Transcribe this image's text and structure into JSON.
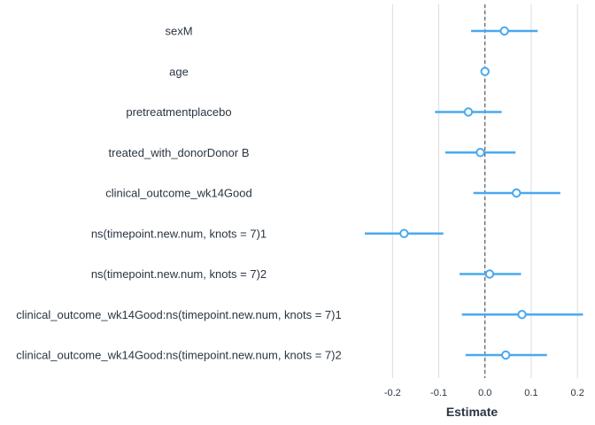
{
  "chart_data": {
    "type": "scatter",
    "subtype": "coefficient-plot",
    "xlabel": "Estimate",
    "ylabel": "",
    "xlim": [
      -0.26,
      0.215
    ],
    "x_ticks": [
      -0.2,
      -0.1,
      0.0,
      0.1,
      0.2
    ],
    "x_tick_labels": [
      "-0.2",
      "-0.1",
      "0.0",
      "0.1",
      "0.2"
    ],
    "grid": "vertical",
    "reference_line": 0,
    "point_color": "#4aa8f0",
    "terms": [
      {
        "name": "sexM",
        "estimate": 0.042,
        "low": -0.03,
        "high": 0.114
      },
      {
        "name": "age",
        "estimate": 0.0,
        "low": -0.002,
        "high": 0.002
      },
      {
        "name": "pretreatmentplacebo",
        "estimate": -0.036,
        "low": -0.108,
        "high": 0.036
      },
      {
        "name": "treated_with_donorDonor B",
        "estimate": -0.01,
        "low": -0.086,
        "high": 0.066
      },
      {
        "name": "clinical_outcome_wk14Good",
        "estimate": 0.068,
        "low": -0.025,
        "high": 0.163
      },
      {
        "name": "ns(timepoint.new.num, knots = 7)1",
        "estimate": -0.175,
        "low": -0.26,
        "high": -0.09
      },
      {
        "name": "ns(timepoint.new.num, knots = 7)2",
        "estimate": 0.01,
        "low": -0.055,
        "high": 0.078
      },
      {
        "name": "clinical_outcome_wk14Good:ns(timepoint.new.num, knots = 7)1",
        "estimate": 0.08,
        "low": -0.05,
        "high": 0.212
      },
      {
        "name": "clinical_outcome_wk14Good:ns(timepoint.new.num, knots = 7)2",
        "estimate": 0.045,
        "low": -0.042,
        "high": 0.134
      }
    ]
  }
}
